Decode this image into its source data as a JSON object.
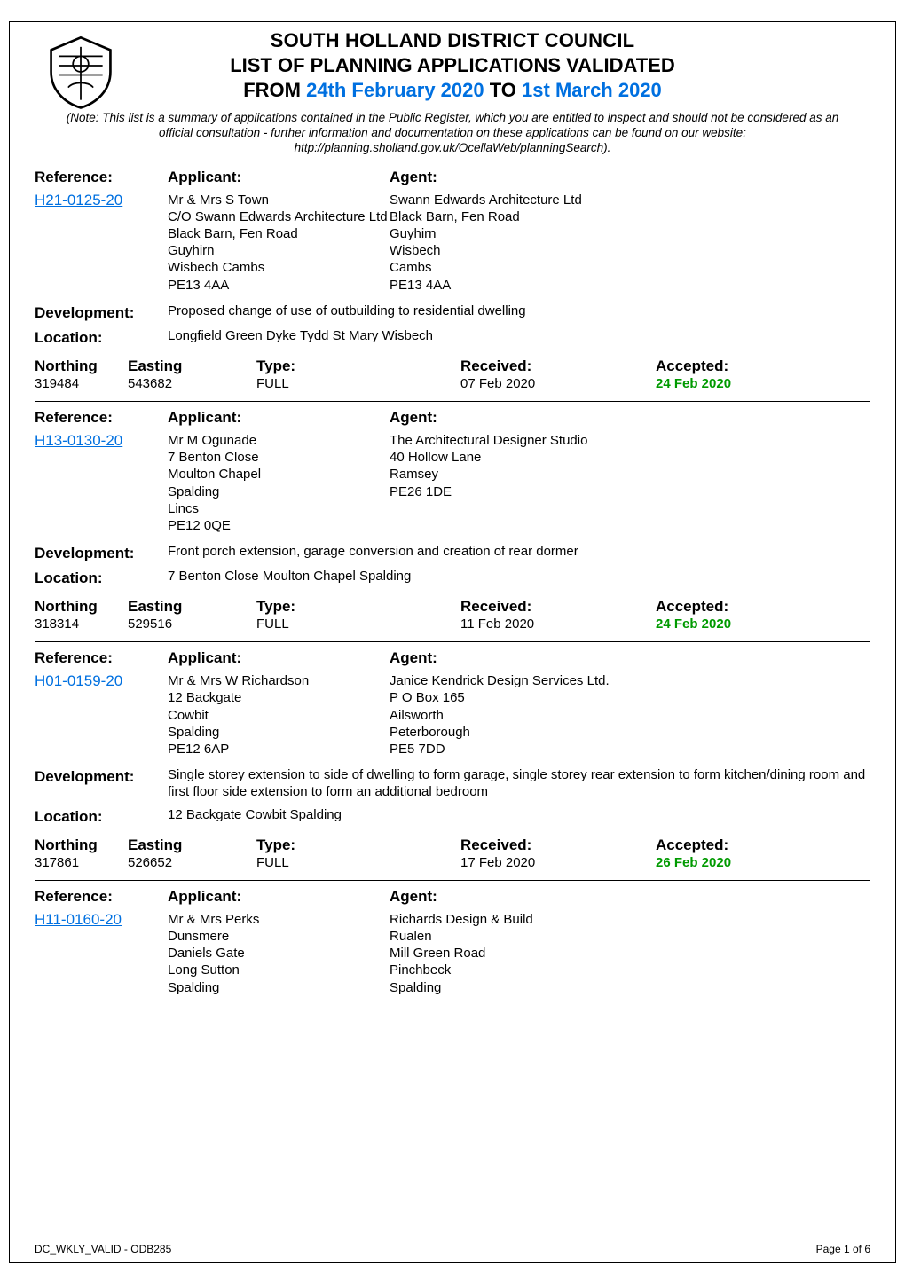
{
  "header": {
    "council": "SOUTH HOLLAND DISTRICT COUNCIL",
    "list_title": "LIST OF PLANNING APPLICATIONS VALIDATED",
    "from_label": "FROM",
    "to_label": "TO",
    "from_date": "24th February 2020",
    "to_date": "1st March 2020",
    "note": "(Note: This list is a summary of applications contained in the Public Register, which you are entitled to inspect and should not be considered as an official consultation - further information and documentation on these applications can be found on our website: http://planning.sholland.gov.uk/OcellaWeb/planningSearch)."
  },
  "labels": {
    "reference": "Reference:",
    "applicant": "Applicant:",
    "agent": "Agent:",
    "development": "Development:",
    "location": "Location:",
    "northing": "Northing",
    "easting": "Easting",
    "type": "Type:",
    "received": "Received:",
    "accepted": "Accepted:"
  },
  "apps": [
    {
      "reference": "H21-0125-20",
      "applicant": "Mr & Mrs S Town\nC/O  Swann Edwards Architecture Ltd\nBlack Barn, Fen Road\nGuyhirn\nWisbech  Cambs\nPE13 4AA",
      "agent": "Swann Edwards Architecture Ltd\nBlack Barn, Fen Road\nGuyhirn\nWisbech\nCambs\nPE13 4AA",
      "development": "Proposed change of use of outbuilding to residential dwelling",
      "location": "Longfield Green Dyke Tydd St Mary Wisbech",
      "northing": "319484",
      "easting": "543682",
      "type": "FULL",
      "received": "07 Feb 2020",
      "accepted": "24 Feb 2020"
    },
    {
      "reference": "H13-0130-20",
      "applicant": "Mr M Ogunade\n7 Benton Close\nMoulton Chapel\nSpalding\nLincs\nPE12 0QE",
      "agent": "The Architectural Designer Studio\n40 Hollow Lane\nRamsey\nPE26 1DE",
      "development": "Front porch extension, garage conversion and creation of rear dormer",
      "location": "7 Benton Close Moulton Chapel Spalding",
      "northing": "318314",
      "easting": "529516",
      "type": "FULL",
      "received": "11 Feb 2020",
      "accepted": "24 Feb 2020"
    },
    {
      "reference": "H01-0159-20",
      "applicant": "Mr & Mrs W Richardson\n12 Backgate\nCowbit\nSpalding\nPE12 6AP",
      "agent": "Janice Kendrick Design Services Ltd.\nP O Box 165\nAilsworth\nPeterborough\nPE5 7DD",
      "development": "Single storey extension to side of dwelling to form garage, single storey rear extension to form kitchen/dining room and first floor side extension to form an additional bedroom",
      "location": "12 Backgate Cowbit Spalding",
      "northing": "317861",
      "easting": "526652",
      "type": "FULL",
      "received": "17 Feb 2020",
      "accepted": "26 Feb 2020"
    },
    {
      "reference": "H11-0160-20",
      "applicant": "Mr & Mrs Perks\nDunsmere\nDaniels Gate\nLong Sutton\nSpalding",
      "agent": "Richards Design & Build\nRualen\nMill Green Road\nPinchbeck\nSpalding",
      "development": "",
      "location": "",
      "northing": "",
      "easting": "",
      "type": "",
      "received": "",
      "accepted": ""
    }
  ],
  "footer": {
    "left": "DC_WKLY_VALID - ODB285",
    "right": "Page 1 of 6"
  },
  "style": {
    "link_color": "#0070e0",
    "accepted_color": "#009a00",
    "text_color": "#000000",
    "background_color": "#ffffff",
    "rule_color": "#000000",
    "heading_fontsize_pt": 17,
    "body_fontsize_pt": 11,
    "note_fontsize_pt": 10
  }
}
